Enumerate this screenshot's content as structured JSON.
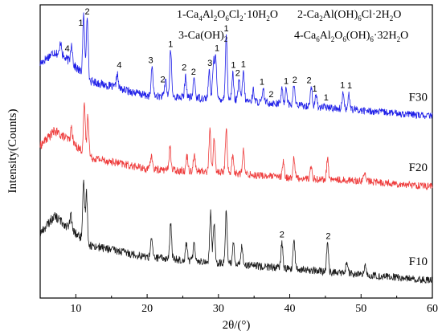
{
  "chart_data": {
    "type": "line",
    "xlabel": "2θ/(°)",
    "ylabel": "Intensity(Counts)",
    "xlim": [
      5,
      60
    ],
    "x_ticks": [
      "10",
      "20",
      "30",
      "40",
      "50",
      "60"
    ],
    "grid": false,
    "legend_position": "top",
    "legend": [
      {
        "text": "1-Ca",
        "parts": [
          [
            "1-Ca",
            ""
          ],
          [
            "4",
            "sub"
          ],
          [
            "Al",
            ""
          ],
          [
            "2",
            "sub"
          ],
          [
            "O",
            ""
          ],
          [
            "6",
            "sub"
          ],
          [
            "Cl",
            ""
          ],
          [
            "2",
            "sub"
          ],
          [
            "·10H",
            ""
          ],
          [
            "2",
            "sub"
          ],
          [
            "O",
            ""
          ]
        ]
      },
      {
        "text": "2-Ca",
        "parts": [
          [
            "2-Ca",
            ""
          ],
          [
            "2",
            "sub"
          ],
          [
            "Al(OH)",
            ""
          ],
          [
            "6",
            "sub"
          ],
          [
            "Cl·2H",
            ""
          ],
          [
            "2",
            "sub"
          ],
          [
            "O",
            ""
          ]
        ]
      },
      {
        "text": "3-Ca",
        "parts": [
          [
            "3-Ca(OH)",
            ""
          ],
          [
            "2",
            "sub"
          ]
        ]
      },
      {
        "text": "4-Ca",
        "parts": [
          [
            "4-Ca",
            ""
          ],
          [
            "6",
            "sub"
          ],
          [
            "Al",
            ""
          ],
          [
            "2",
            "sub"
          ],
          [
            "O",
            ""
          ],
          [
            "6",
            "sub"
          ],
          [
            "(OH)",
            ""
          ],
          [
            "6",
            "sub"
          ],
          [
            "·32H",
            ""
          ],
          [
            "2",
            "sub"
          ],
          [
            "O",
            ""
          ]
        ]
      }
    ],
    "series": [
      {
        "name": "F30",
        "color": "#1f1fe8",
        "offset": 0.62,
        "baseline": [
          [
            5,
            0.18
          ],
          [
            7,
            0.22
          ],
          [
            9,
            0.19
          ],
          [
            12,
            0.12
          ],
          [
            20,
            0.07
          ],
          [
            30,
            0.06
          ],
          [
            40,
            0.04
          ],
          [
            50,
            0.02
          ],
          [
            60,
            0.0
          ]
        ],
        "peaks": [
          [
            7.9,
            0.05
          ],
          [
            9.4,
            0.07
          ],
          [
            11.1,
            0.2
          ],
          [
            11.6,
            0.22
          ],
          [
            15.8,
            0.05
          ],
          [
            20.7,
            0.1
          ],
          [
            22.6,
            0.06
          ],
          [
            23.3,
            0.16
          ],
          [
            25.4,
            0.07
          ],
          [
            26.6,
            0.07
          ],
          [
            28.7,
            0.09
          ],
          [
            29.3,
            0.12
          ],
          [
            29.6,
            0.14
          ],
          [
            31.1,
            0.22
          ],
          [
            32.0,
            0.09
          ],
          [
            32.9,
            0.07
          ],
          [
            33.5,
            0.1
          ],
          [
            34.9,
            0.04
          ],
          [
            36.3,
            0.04
          ],
          [
            38.9,
            0.05
          ],
          [
            39.5,
            0.06
          ],
          [
            40.6,
            0.07
          ],
          [
            43.0,
            0.07
          ],
          [
            43.7,
            0.04
          ],
          [
            47.5,
            0.06
          ],
          [
            48.3,
            0.05
          ]
        ]
      },
      {
        "name": "F20",
        "color": "#ee3b3b",
        "offset": 0.38,
        "baseline": [
          [
            5,
            0.14
          ],
          [
            7,
            0.19
          ],
          [
            9,
            0.16
          ],
          [
            12,
            0.1
          ],
          [
            20,
            0.06
          ],
          [
            30,
            0.05
          ],
          [
            40,
            0.03
          ],
          [
            50,
            0.02
          ],
          [
            60,
            0.0
          ]
        ],
        "peaks": [
          [
            9.4,
            0.05
          ],
          [
            11.2,
            0.16
          ],
          [
            11.7,
            0.14
          ],
          [
            20.6,
            0.05
          ],
          [
            23.2,
            0.08
          ],
          [
            25.6,
            0.05
          ],
          [
            26.6,
            0.06
          ],
          [
            28.8,
            0.14
          ],
          [
            29.4,
            0.12
          ],
          [
            31.1,
            0.15
          ],
          [
            32.0,
            0.06
          ],
          [
            33.5,
            0.08
          ],
          [
            39.1,
            0.05
          ],
          [
            40.6,
            0.07
          ],
          [
            43.0,
            0.04
          ],
          [
            45.3,
            0.07
          ],
          [
            50.5,
            0.03
          ]
        ]
      },
      {
        "name": "F10",
        "color": "#1a1a1a",
        "offset": 0.06,
        "baseline": [
          [
            5,
            0.16
          ],
          [
            7,
            0.22
          ],
          [
            9,
            0.18
          ],
          [
            12,
            0.12
          ],
          [
            20,
            0.08
          ],
          [
            30,
            0.06
          ],
          [
            40,
            0.04
          ],
          [
            50,
            0.02
          ],
          [
            60,
            0.0
          ]
        ],
        "peaks": [
          [
            9.3,
            0.05
          ],
          [
            11.1,
            0.19
          ],
          [
            11.5,
            0.17
          ],
          [
            20.6,
            0.07
          ],
          [
            23.3,
            0.12
          ],
          [
            25.5,
            0.06
          ],
          [
            26.6,
            0.07
          ],
          [
            28.9,
            0.17
          ],
          [
            29.4,
            0.14
          ],
          [
            31.1,
            0.18
          ],
          [
            32.1,
            0.08
          ],
          [
            33.3,
            0.07
          ],
          [
            38.9,
            0.09
          ],
          [
            40.6,
            0.1
          ],
          [
            45.3,
            0.1
          ],
          [
            48.0,
            0.04
          ],
          [
            50.6,
            0.03
          ]
        ]
      }
    ],
    "peak_labels": [
      {
        "series": "F30",
        "label": "4",
        "x": 8.8
      },
      {
        "series": "F30",
        "label": "1",
        "x": 10.7
      },
      {
        "series": "F30",
        "label": "2",
        "x": 11.6
      },
      {
        "series": "F30",
        "label": "4",
        "x": 16.1
      },
      {
        "series": "F30",
        "label": "3",
        "x": 20.5
      },
      {
        "series": "F30",
        "label": "2",
        "x": 22.2
      },
      {
        "series": "F30",
        "label": "1",
        "x": 23.3
      },
      {
        "series": "F30",
        "label": "2",
        "x": 25.2
      },
      {
        "series": "F30",
        "label": "2",
        "x": 26.5
      },
      {
        "series": "F30",
        "label": "3",
        "x": 28.8
      },
      {
        "series": "F30",
        "label": "1",
        "x": 29.8
      },
      {
        "series": "F30",
        "label": "1",
        "x": 31.1
      },
      {
        "series": "F30",
        "label": "1",
        "x": 32.1
      },
      {
        "series": "F30",
        "label": "2",
        "x": 32.7
      },
      {
        "series": "F30",
        "label": "1",
        "x": 33.5
      },
      {
        "series": "F30",
        "label": "1",
        "x": 36.1
      },
      {
        "series": "F30",
        "label": "2",
        "x": 37.4
      },
      {
        "series": "F30",
        "label": "1",
        "x": 39.5
      },
      {
        "series": "F30",
        "label": "2",
        "x": 40.7
      },
      {
        "series": "F30",
        "label": "2",
        "x": 42.7
      },
      {
        "series": "F30",
        "label": "1",
        "x": 43.5
      },
      {
        "series": "F30",
        "label": "1",
        "x": 45.1
      },
      {
        "series": "F30",
        "label": "1",
        "x": 47.4
      },
      {
        "series": "F30",
        "label": "1",
        "x": 48.4
      },
      {
        "series": "F10",
        "label": "2",
        "x": 38.9
      },
      {
        "series": "F10",
        "label": "2",
        "x": 45.4
      }
    ]
  }
}
